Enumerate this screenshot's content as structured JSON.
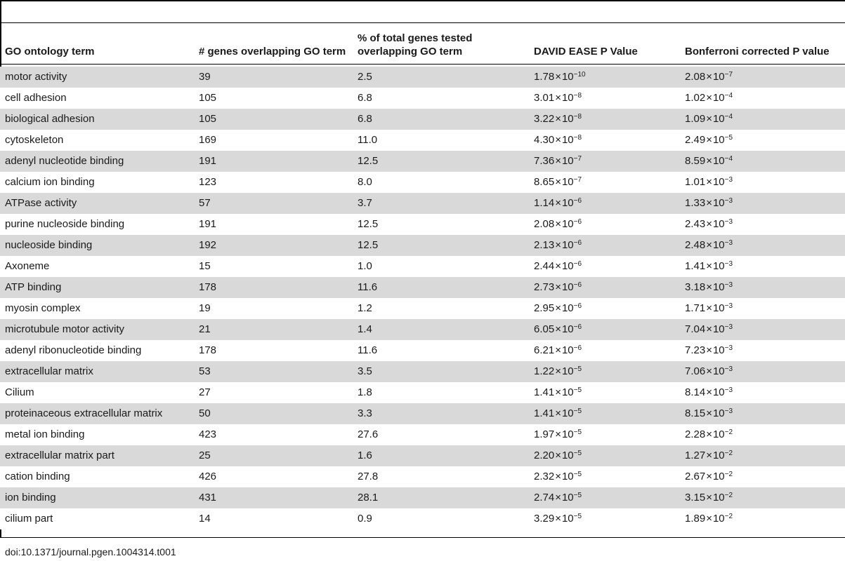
{
  "header": {
    "go_term": "GO ontology term",
    "genes_overlap": "# genes overlapping GO term",
    "pct_total": "% of total genes tested overlapping GO term",
    "david_p": "DAVID EASE P Value",
    "bonferroni": "Bonferroni corrected P value"
  },
  "rows": [
    {
      "term": "motor activity",
      "genes": "39",
      "pct": "2.5",
      "p_mant": "1.78",
      "p_exp": "−10",
      "b_mant": "2.08",
      "b_exp": "−7"
    },
    {
      "term": "cell adhesion",
      "genes": "105",
      "pct": "6.8",
      "p_mant": "3.01",
      "p_exp": "−8",
      "b_mant": "1.02",
      "b_exp": "−4"
    },
    {
      "term": "biological adhesion",
      "genes": "105",
      "pct": "6.8",
      "p_mant": "3.22",
      "p_exp": "−8",
      "b_mant": "1.09",
      "b_exp": "−4"
    },
    {
      "term": "cytoskeleton",
      "genes": "169",
      "pct": "11.0",
      "p_mant": "4.30",
      "p_exp": "−8",
      "b_mant": "2.49",
      "b_exp": "−5"
    },
    {
      "term": "adenyl nucleotide binding",
      "genes": "191",
      "pct": "12.5",
      "p_mant": "7.36",
      "p_exp": "−7",
      "b_mant": "8.59",
      "b_exp": "−4"
    },
    {
      "term": "calcium ion binding",
      "genes": "123",
      "pct": "8.0",
      "p_mant": "8.65",
      "p_exp": "−7",
      "b_mant": "1.01",
      "b_exp": "−3"
    },
    {
      "term": "ATPase activity",
      "genes": "57",
      "pct": "3.7",
      "p_mant": "1.14",
      "p_exp": "−6",
      "b_mant": "1.33",
      "b_exp": "−3"
    },
    {
      "term": "purine nucleoside binding",
      "genes": "191",
      "pct": "12.5",
      "p_mant": "2.08",
      "p_exp": "−6",
      "b_mant": "2.43",
      "b_exp": "−3"
    },
    {
      "term": "nucleoside binding",
      "genes": "192",
      "pct": "12.5",
      "p_mant": "2.13",
      "p_exp": "−6",
      "b_mant": "2.48",
      "b_exp": "−3"
    },
    {
      "term": "Axoneme",
      "genes": "15",
      "pct": "1.0",
      "p_mant": "2.44",
      "p_exp": "−6",
      "b_mant": "1.41",
      "b_exp": "−3"
    },
    {
      "term": "ATP binding",
      "genes": "178",
      "pct": "11.6",
      "p_mant": "2.73",
      "p_exp": "−6",
      "b_mant": "3.18",
      "b_exp": "−3"
    },
    {
      "term": "myosin complex",
      "genes": "19",
      "pct": "1.2",
      "p_mant": "2.95",
      "p_exp": "−6",
      "b_mant": "1.71",
      "b_exp": "−3"
    },
    {
      "term": "microtubule motor activity",
      "genes": "21",
      "pct": "1.4",
      "p_mant": "6.05",
      "p_exp": "−6",
      "b_mant": "7.04",
      "b_exp": "−3"
    },
    {
      "term": "adenyl ribonucleotide binding",
      "genes": "178",
      "pct": "11.6",
      "p_mant": "6.21",
      "p_exp": "−6",
      "b_mant": "7.23",
      "b_exp": "−3"
    },
    {
      "term": "extracellular matrix",
      "genes": "53",
      "pct": "3.5",
      "p_mant": "1.22",
      "p_exp": "−5",
      "b_mant": "7.06",
      "b_exp": "−3"
    },
    {
      "term": "Cilium",
      "genes": "27",
      "pct": "1.8",
      "p_mant": "1.41",
      "p_exp": "−5",
      "b_mant": "8.14",
      "b_exp": "−3"
    },
    {
      "term": "proteinaceous extracellular matrix",
      "genes": "50",
      "pct": "3.3",
      "p_mant": "1.41",
      "p_exp": "−5",
      "b_mant": "8.15",
      "b_exp": "−3"
    },
    {
      "term": "metal ion binding",
      "genes": "423",
      "pct": "27.6",
      "p_mant": "1.97",
      "p_exp": "−5",
      "b_mant": "2.28",
      "b_exp": "−2"
    },
    {
      "term": "extracellular matrix part",
      "genes": "25",
      "pct": "1.6",
      "p_mant": "2.20",
      "p_exp": "−5",
      "b_mant": "1.27",
      "b_exp": "−2"
    },
    {
      "term": "cation binding",
      "genes": "426",
      "pct": "27.8",
      "p_mant": "2.32",
      "p_exp": "−5",
      "b_mant": "2.67",
      "b_exp": "−2"
    },
    {
      "term": "ion binding",
      "genes": "431",
      "pct": "28.1",
      "p_mant": "2.74",
      "p_exp": "−5",
      "b_mant": "3.15",
      "b_exp": "−2"
    },
    {
      "term": "cilium part",
      "genes": "14",
      "pct": "0.9",
      "p_mant": "3.29",
      "p_exp": "−5",
      "b_mant": "1.89",
      "b_exp": "−2"
    }
  ],
  "footer": {
    "doi": "doi:10.1371/journal.pgen.1004314.t001"
  },
  "colors": {
    "shaded_row": "#d9d9d9",
    "rule": "#000000"
  },
  "symbols": {
    "times": "×",
    "base": "10"
  }
}
